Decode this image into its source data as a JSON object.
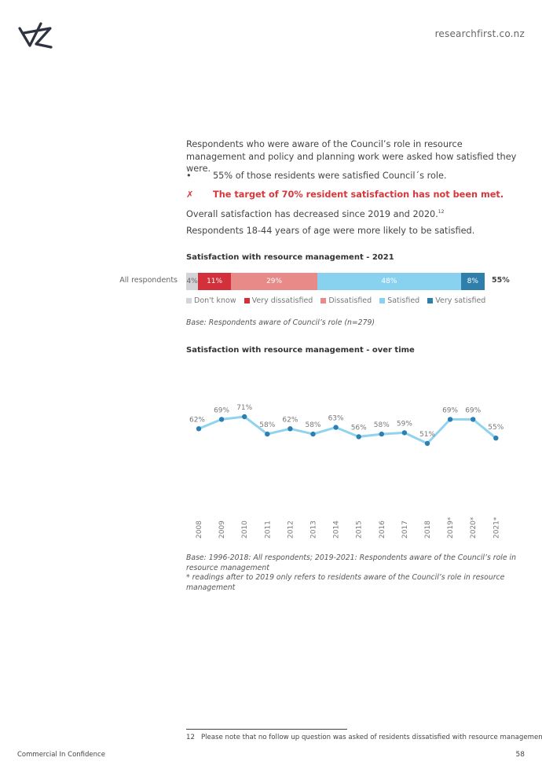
{
  "header": {
    "site": "researchfirst.co.nz"
  },
  "body": {
    "intro": "Respondents who were aware of the Council’s role in resource management and policy and planning work were asked how satisfied they were.",
    "bullet_marker": "•",
    "bullet": "55% of those residents were satisfied Council´s role.",
    "target_marker": "✗",
    "target": "The target of 70% resident satisfaction has not been met.",
    "overall": "Overall satisfaction has decreased since 2019 and 2020.",
    "overall_ref": "12",
    "age": "Respondents 18-44 years of age were more likely to be satisfied."
  },
  "colors": {
    "dont_know": "#d4d4d8",
    "very_dissatisfied": "#d2303a",
    "dissatisfied": "#e88a87",
    "satisfied": "#88d2f0",
    "very_satisfied": "#2f7fac",
    "line": "#8fd3ef",
    "dot": "#2b7fb3"
  },
  "chart_data": [
    {
      "type": "bar",
      "title": "Satisfaction with resource management - 2021",
      "categories": [
        "All respondents"
      ],
      "series": [
        {
          "name": "Don't know",
          "values": [
            4
          ],
          "label": "4%"
        },
        {
          "name": "Very dissatisfied",
          "values": [
            11
          ],
          "label": "11%"
        },
        {
          "name": "Dissatisfied",
          "values": [
            29
          ],
          "label": "29%"
        },
        {
          "name": "Satisfied",
          "values": [
            48
          ],
          "label": "48%"
        },
        {
          "name": "Very satisfied",
          "values": [
            8
          ],
          "label": "8%"
        }
      ],
      "total_label": "55%",
      "legend": "bottom",
      "base": "Base: Respondents aware of Council’s role (n=279)"
    },
    {
      "type": "line",
      "title": "Satisfaction with resource management - over time",
      "x": [
        "2008",
        "2009",
        "2010",
        "2011",
        "2012",
        "2013",
        "2014",
        "2015",
        "2016",
        "2017",
        "2018",
        "2019*",
        "2020*",
        "2021*"
      ],
      "values": [
        62,
        69,
        71,
        58,
        62,
        58,
        63,
        56,
        58,
        59,
        51,
        69,
        69,
        55
      ],
      "labels": [
        "62%",
        "69%",
        "71%",
        "58%",
        "62%",
        "58%",
        "63%",
        "56%",
        "58%",
        "59%",
        "51%",
        "69%",
        "69%",
        "55%"
      ],
      "grid": false,
      "notes": [
        "Base: 1996-2018: All respondents; 2019-2021: Respondents aware of the Council’s role in resource management",
        "* readings after to 2019 only refers to residents aware of the Council’s role in resource management"
      ]
    }
  ],
  "footer": {
    "footnote_number": "12",
    "footnote": "Please note that no follow up question was asked of residents dissatisfied with resource management.",
    "confidential": "Commercial In Confidence",
    "page": "58"
  }
}
